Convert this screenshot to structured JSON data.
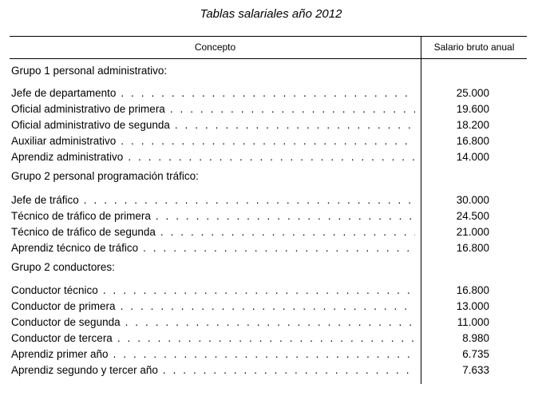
{
  "title": "Tablas salariales año 2012",
  "table": {
    "headers": [
      "Concepto",
      "Salario bruto anual"
    ],
    "groups": [
      {
        "name": "Grupo 1 personal administrativo:",
        "rows": [
          [
            "Jefe de departamento",
            "25.000"
          ],
          [
            "Oficial administrativo de primera",
            "19.600"
          ],
          [
            "Oficial administrativo de segunda",
            "18.200"
          ],
          [
            "Auxiliar administrativo",
            "16.800"
          ],
          [
            "Aprendiz administrativo",
            "14.000"
          ]
        ]
      },
      {
        "name": "Grupo 2 personal programación tráfico:",
        "rows": [
          [
            "Jefe de tráfico",
            "30.000"
          ],
          [
            "Técnico de tráfico de primera",
            "24.500"
          ],
          [
            "Técnico de tráfico de segunda",
            "21.000"
          ],
          [
            "Aprendiz técnico de tráfico",
            "16.800"
          ]
        ]
      },
      {
        "name": "Grupo 2 conductores:",
        "rows": [
          [
            "Conductor técnico",
            "16.800"
          ],
          [
            "Conductor de primera",
            "13.000"
          ],
          [
            "Conductor de segunda",
            "11.000"
          ],
          [
            "Conductor de tercera",
            "8.980"
          ],
          [
            "Aprendiz primer año",
            "6.735"
          ],
          [
            "Aprendiz segundo y tercer año",
            "7.633"
          ]
        ]
      }
    ]
  }
}
